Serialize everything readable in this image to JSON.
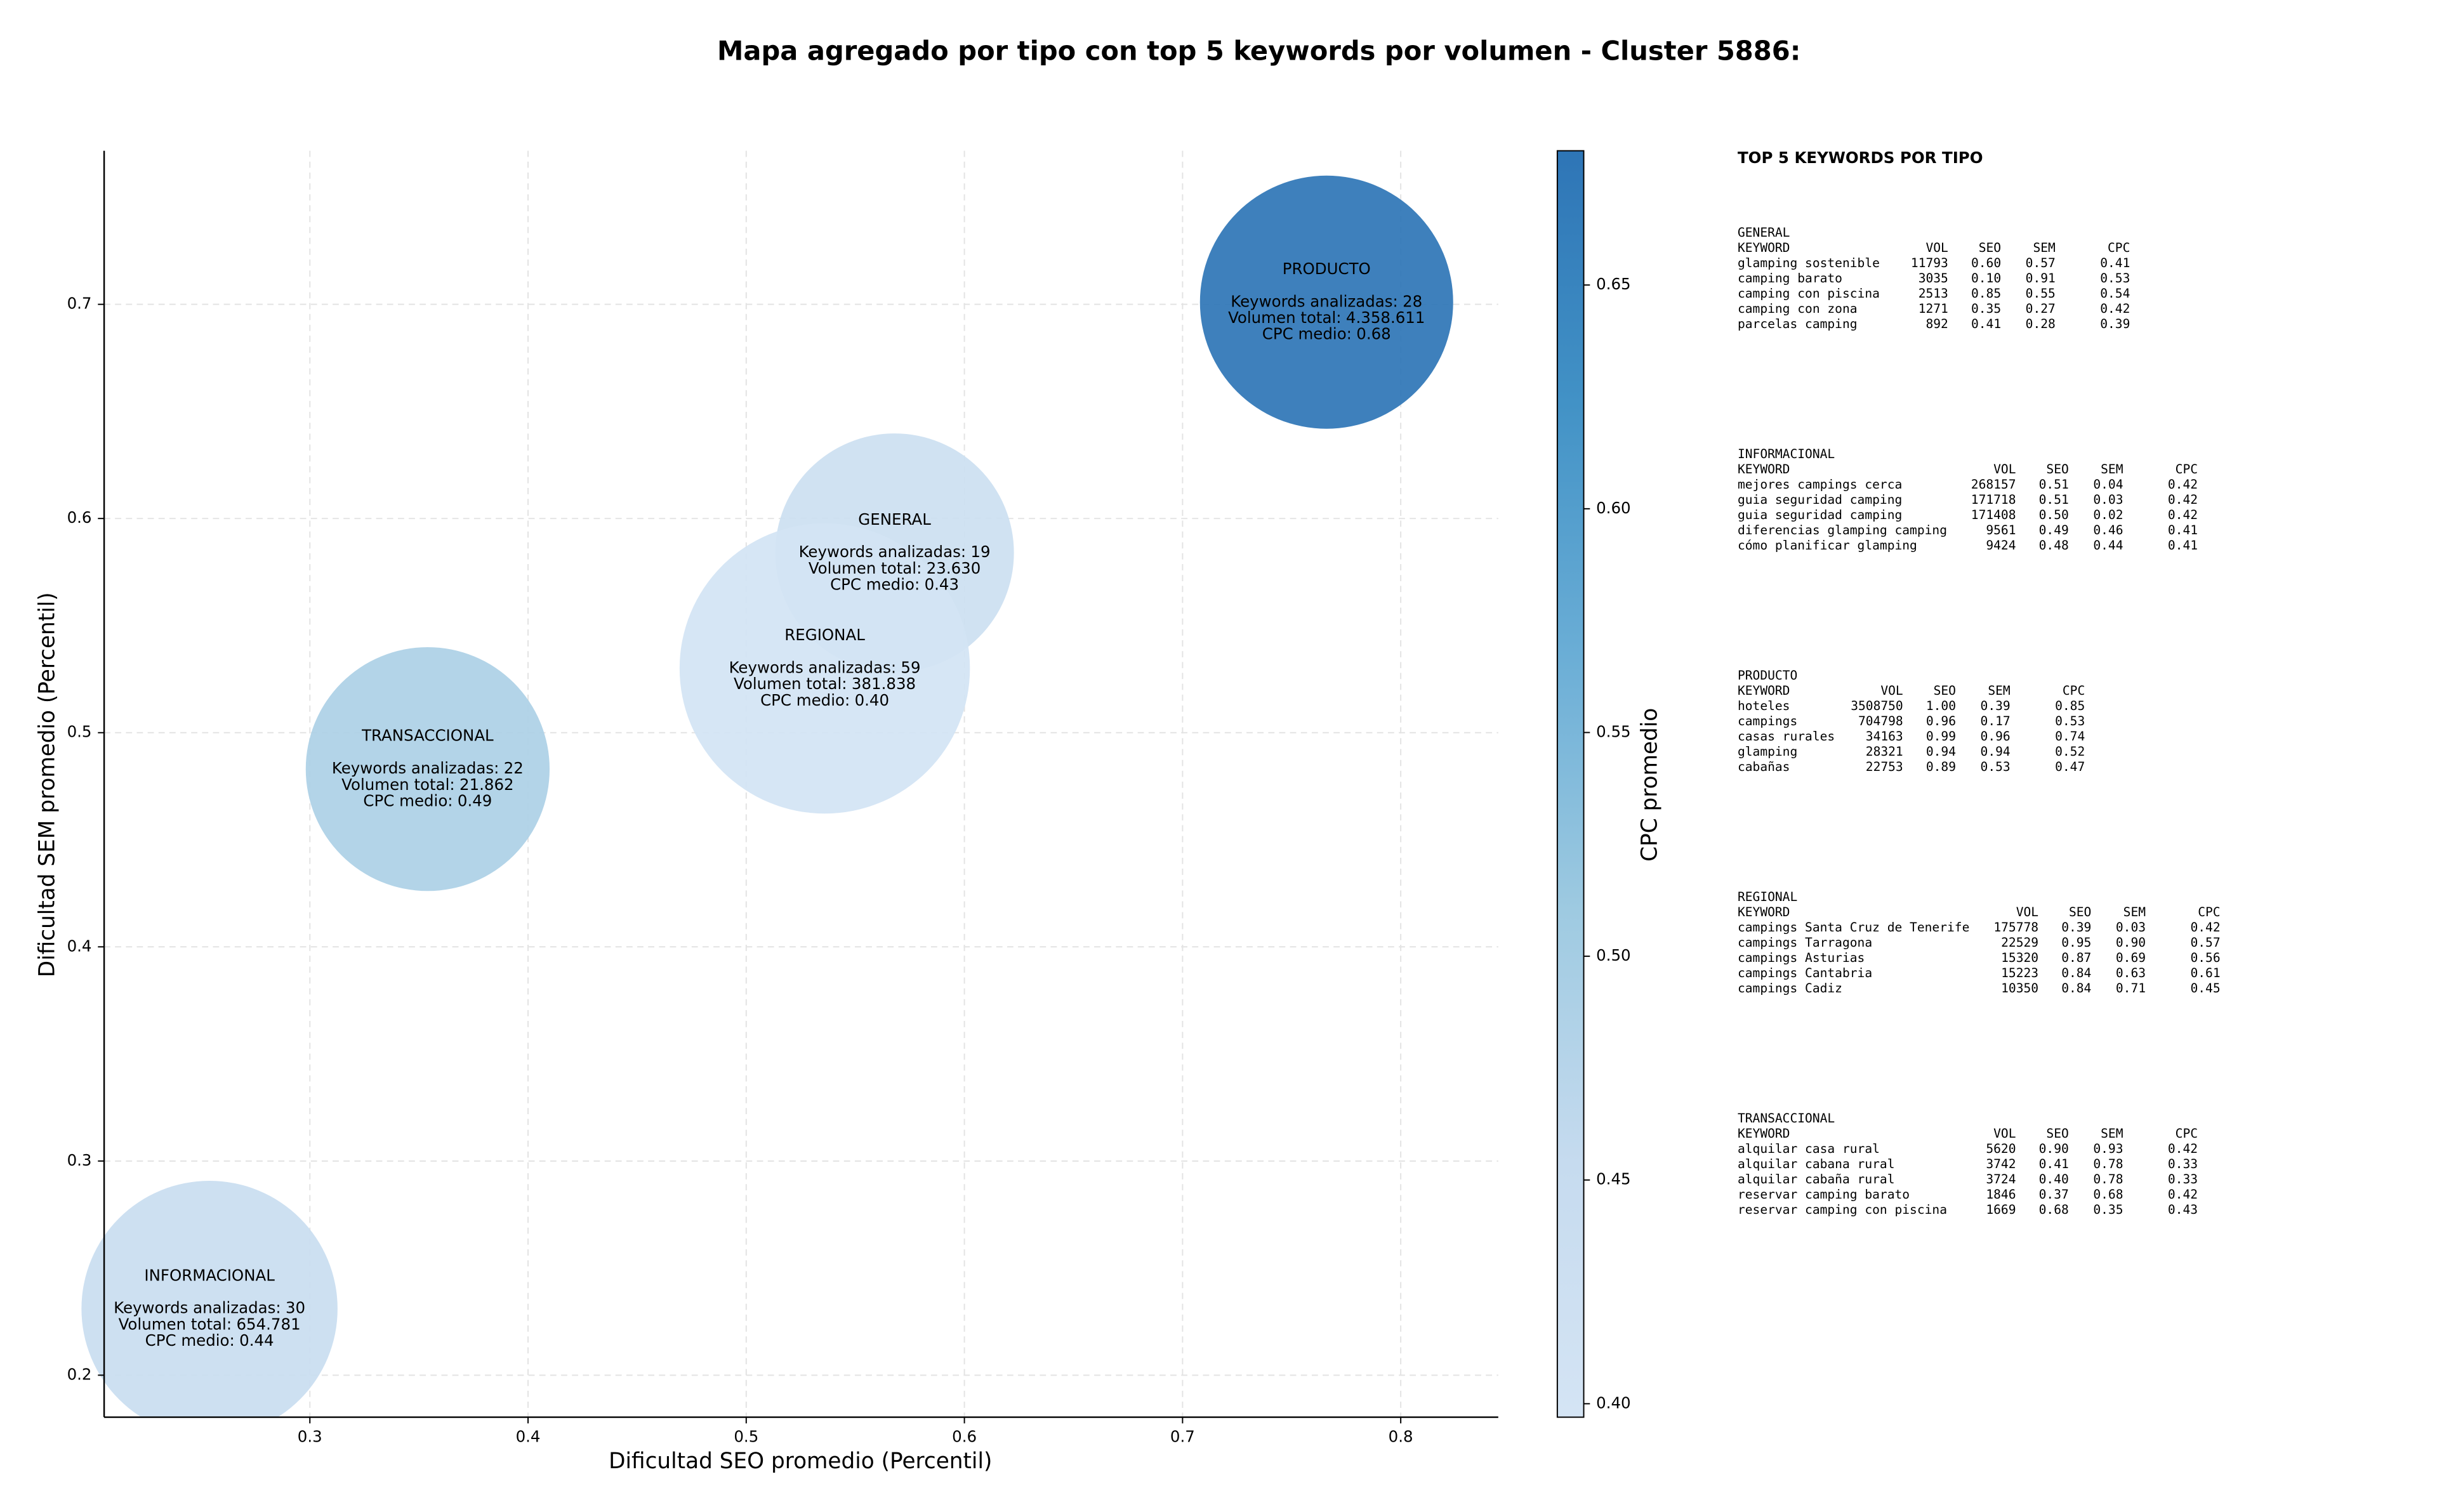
{
  "chart_data": {
    "type": "bubble",
    "title": "Mapa agregado por tipo con top 5 keywords por volumen - Cluster 5886:",
    "x_label": "Dificultad SEO promedio (Percentil)",
    "y_label": "Dificultad SEM promedio (Percentil)",
    "xlim": [
      0.2057,
      0.8447
    ],
    "ylim": [
      0.1804,
      0.7717
    ],
    "xticks": [
      0.3,
      0.4,
      0.5,
      0.6,
      0.7,
      0.8
    ],
    "yticks": [
      0.2,
      0.3,
      0.4,
      0.5,
      0.6,
      0.7
    ],
    "grid": true,
    "colorbar": {
      "label": "CPC promedio",
      "clim": [
        0.397,
        0.68
      ],
      "ticks": [
        {
          "value": 0.4,
          "label": "0.40"
        },
        {
          "value": 0.45,
          "label": "0.45"
        },
        {
          "value": 0.5,
          "label": "0.50"
        },
        {
          "value": 0.55,
          "label": "0.55"
        },
        {
          "value": 0.6,
          "label": "0.60"
        },
        {
          "value": 0.65,
          "label": "0.65"
        }
      ],
      "colormap": [
        "#d4e4f4",
        "#c6dbef",
        "#9ecae1",
        "#6baed6",
        "#4292c6",
        "#2e75b6"
      ]
    },
    "label_prefixes": {
      "keywords": "Keywords analizadas:",
      "volume": "Volumen total:",
      "cpc": "CPC medio:"
    },
    "points": [
      {
        "name": "INFORMACIONAL",
        "x": 0.254,
        "y": 0.231,
        "keywords": 30,
        "volume": 654781,
        "volume_label": "654.781",
        "cpc": 0.44,
        "cpc_label": "0.44"
      },
      {
        "name": "TRANSACCIONAL",
        "x": 0.354,
        "y": 0.483,
        "keywords": 22,
        "volume": 21862,
        "volume_label": "21.862",
        "cpc": 0.49,
        "cpc_label": "0.49"
      },
      {
        "name": "GENERAL",
        "x": 0.568,
        "y": 0.584,
        "keywords": 19,
        "volume": 23630,
        "volume_label": "23.630",
        "cpc": 0.43,
        "cpc_label": "0.43"
      },
      {
        "name": "REGIONAL",
        "x": 0.536,
        "y": 0.53,
        "keywords": 59,
        "volume": 381838,
        "volume_label": "381.838",
        "cpc": 0.4,
        "cpc_label": "0.40"
      },
      {
        "name": "PRODUCTO",
        "x": 0.766,
        "y": 0.701,
        "keywords": 28,
        "volume": 4358611,
        "volume_label": "4.358.611",
        "cpc": 0.68,
        "cpc_label": "0.68"
      }
    ]
  },
  "side_panel": {
    "title": "TOP 5 KEYWORDS POR TIPO",
    "columns": [
      "KEYWORD",
      "VOL",
      "SEO",
      "SEM",
      "CPC"
    ],
    "sections": [
      {
        "name": "GENERAL",
        "rows": [
          [
            "glamping sostenible",
            "11793",
            "0.60",
            "0.57",
            "0.41"
          ],
          [
            "camping barato",
            "3035",
            "0.10",
            "0.91",
            "0.53"
          ],
          [
            "camping con piscina",
            "2513",
            "0.85",
            "0.55",
            "0.54"
          ],
          [
            "camping con zona",
            "1271",
            "0.35",
            "0.27",
            "0.42"
          ],
          [
            "parcelas camping",
            "892",
            "0.41",
            "0.28",
            "0.39"
          ]
        ]
      },
      {
        "name": "INFORMACIONAL",
        "rows": [
          [
            "mejores campings cerca",
            "268157",
            "0.51",
            "0.04",
            "0.42"
          ],
          [
            "guia seguridad camping",
            "171718",
            "0.51",
            "0.03",
            "0.42"
          ],
          [
            "guia seguridad camping",
            "171408",
            "0.50",
            "0.02",
            "0.42"
          ],
          [
            "diferencias glamping camping",
            "9561",
            "0.49",
            "0.46",
            "0.41"
          ],
          [
            "cómo planificar glamping",
            "9424",
            "0.48",
            "0.44",
            "0.41"
          ]
        ]
      },
      {
        "name": "PRODUCTO",
        "rows": [
          [
            "hoteles",
            "3508750",
            "1.00",
            "0.39",
            "0.85"
          ],
          [
            "campings",
            "704798",
            "0.96",
            "0.17",
            "0.53"
          ],
          [
            "casas rurales",
            "34163",
            "0.99",
            "0.96",
            "0.74"
          ],
          [
            "glamping",
            "28321",
            "0.94",
            "0.94",
            "0.52"
          ],
          [
            "cabañas",
            "22753",
            "0.89",
            "0.53",
            "0.47"
          ]
        ]
      },
      {
        "name": "REGIONAL",
        "rows": [
          [
            "campings Santa Cruz de Tenerife",
            "175778",
            "0.39",
            "0.03",
            "0.42"
          ],
          [
            "campings Tarragona",
            "22529",
            "0.95",
            "0.90",
            "0.57"
          ],
          [
            "campings Asturias",
            "15320",
            "0.87",
            "0.69",
            "0.56"
          ],
          [
            "campings Cantabria",
            "15223",
            "0.84",
            "0.63",
            "0.61"
          ],
          [
            "campings Cadiz",
            "10350",
            "0.84",
            "0.71",
            "0.45"
          ]
        ]
      },
      {
        "name": "TRANSACCIONAL",
        "rows": [
          [
            "alquilar casa rural",
            "5620",
            "0.90",
            "0.93",
            "0.42"
          ],
          [
            "alquilar cabana rural",
            "3742",
            "0.41",
            "0.78",
            "0.33"
          ],
          [
            "alquilar cabaña rural",
            "3724",
            "0.40",
            "0.78",
            "0.33"
          ],
          [
            "reservar camping barato",
            "1846",
            "0.37",
            "0.68",
            "0.42"
          ],
          [
            "reservar camping con piscina",
            "1669",
            "0.68",
            "0.35",
            "0.43"
          ]
        ]
      }
    ]
  }
}
